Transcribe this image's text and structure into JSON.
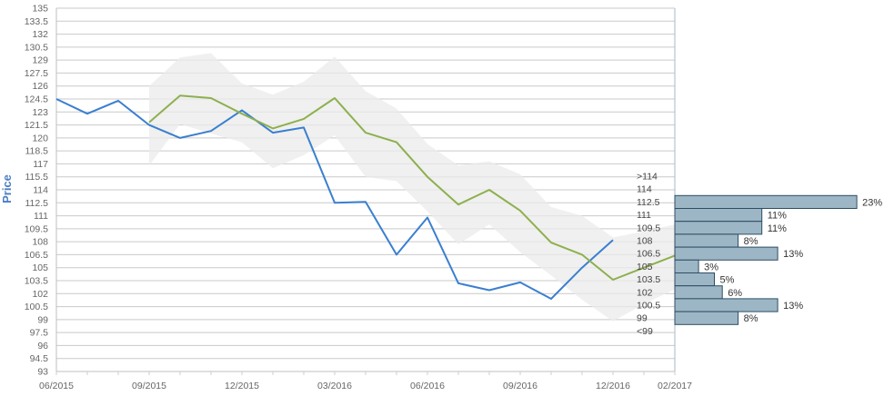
{
  "chart_data": {
    "type": "line",
    "title": "",
    "xlabel": "",
    "ylabel": "Price",
    "ylim": [
      93,
      135
    ],
    "y_ticks": [
      93,
      94.5,
      96,
      97.5,
      99,
      100.5,
      102,
      103.5,
      105,
      106.5,
      108,
      109.5,
      111,
      112.5,
      114,
      115.5,
      117,
      118.5,
      120,
      121.5,
      123,
      124.5,
      126,
      127.5,
      129,
      130.5,
      132,
      133.5,
      135
    ],
    "x_ticks": [
      "06/2015",
      "09/2015",
      "12/2015",
      "03/2016",
      "06/2016",
      "09/2016",
      "12/2016",
      "02/2017"
    ],
    "grid": true,
    "series": [
      {
        "role": "actual",
        "color": "#3a7fd0",
        "x": [
          "2015-06",
          "2015-07",
          "2015-08",
          "2015-09",
          "2015-10",
          "2015-11",
          "2015-12",
          "2016-01",
          "2016-02",
          "2016-03",
          "2016-04",
          "2016-05",
          "2016-06",
          "2016-07",
          "2016-08",
          "2016-09",
          "2016-10",
          "2016-11",
          "2016-12"
        ],
        "values": [
          124.5,
          122.8,
          124.3,
          121.5,
          120,
          120.8,
          123.2,
          120.6,
          121.2,
          112.5,
          112.6,
          106.5,
          110.8,
          103.2,
          102.4,
          103.3,
          101.4,
          105,
          108.2
        ]
      },
      {
        "role": "forecast",
        "color": "#8db04e",
        "x": [
          "2015-09",
          "2015-10",
          "2015-11",
          "2015-12",
          "2016-01",
          "2016-02",
          "2016-03",
          "2016-04",
          "2016-05",
          "2016-06",
          "2016-07",
          "2016-08",
          "2016-09",
          "2016-10",
          "2016-11",
          "2016-12",
          "2017-01",
          "2017-02"
        ],
        "values": [
          121.8,
          124.9,
          124.6,
          122.8,
          121.1,
          122.2,
          124.6,
          120.6,
          119.5,
          115.5,
          112.3,
          114,
          111.6,
          107.9,
          106.5,
          103.6,
          105,
          106.4
        ]
      }
    ],
    "band": {
      "color": "#ebebeb",
      "x": [
        "2015-09",
        "2015-10",
        "2015-11",
        "2015-12",
        "2016-01",
        "2016-02",
        "2016-03",
        "2016-04",
        "2016-05",
        "2016-06",
        "2016-07",
        "2016-08",
        "2016-09",
        "2016-10",
        "2016-11",
        "2016-12",
        "2017-01",
        "2017-02"
      ],
      "upper": [
        126,
        129.3,
        129.8,
        126.3,
        125,
        126.5,
        129.4,
        125.4,
        123.4,
        119.3,
        116.8,
        117.3,
        115.8,
        112,
        111,
        108.5,
        109.2,
        110
      ],
      "lower": [
        116.8,
        121.6,
        120.5,
        119.5,
        116.5,
        118,
        120.3,
        115.5,
        115,
        111.5,
        107.7,
        110,
        106.8,
        104.1,
        101.3,
        98.8,
        100.8,
        102.5
      ]
    },
    "distribution": {
      "color": "#9db6c5",
      "bins": [
        {
          "label": ">114",
          "pct": null
        },
        {
          "label": "114",
          "pct": null
        },
        {
          "label": "112.5",
          "pct": 23,
          "pct_label": "23%"
        },
        {
          "label": "111",
          "pct": 11,
          "pct_label": "11%"
        },
        {
          "label": "109.5",
          "pct": 11,
          "pct_label": "11%"
        },
        {
          "label": "108",
          "pct": 8,
          "pct_label": "8%"
        },
        {
          "label": "106.5",
          "pct": 13,
          "pct_label": "13%"
        },
        {
          "label": "105",
          "pct": 3,
          "pct_label": "3%"
        },
        {
          "label": "103.5",
          "pct": 5,
          "pct_label": "5%"
        },
        {
          "label": "102",
          "pct": 6,
          "pct_label": "6%"
        },
        {
          "label": "100.5",
          "pct": 13,
          "pct_label": "13%"
        },
        {
          "label": "99",
          "pct": 8,
          "pct_label": "8%"
        },
        {
          "label": "<99",
          "pct": null
        }
      ]
    }
  }
}
